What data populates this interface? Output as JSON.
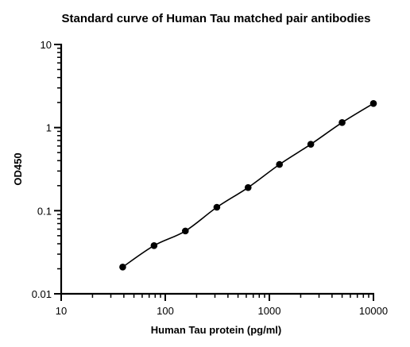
{
  "chart_data": {
    "type": "scatter",
    "title": "Standard curve of Human Tau matched pair antibodies",
    "xlabel": "Human Tau protein (pg/ml)",
    "ylabel": "OD450",
    "x_scale": "log",
    "y_scale": "log",
    "xlim": [
      10,
      10000
    ],
    "ylim": [
      0.01,
      10
    ],
    "x_ticks": [
      10,
      100,
      1000,
      10000
    ],
    "x_tick_labels": [
      "10",
      "100",
      "1000",
      "10000"
    ],
    "y_ticks": [
      0.01,
      0.1,
      1,
      10
    ],
    "y_tick_labels": [
      "0.01",
      "0.1",
      "1",
      "10"
    ],
    "grid": false,
    "legend": false,
    "point_color": "#000000",
    "series": [
      {
        "x": [
          39,
          78,
          156,
          313,
          625,
          1250,
          2500,
          5000,
          10000
        ],
        "y": [
          0.021,
          0.038,
          0.057,
          0.11,
          0.19,
          0.36,
          0.63,
          1.15,
          1.95
        ],
        "fit_line": true
      }
    ]
  }
}
